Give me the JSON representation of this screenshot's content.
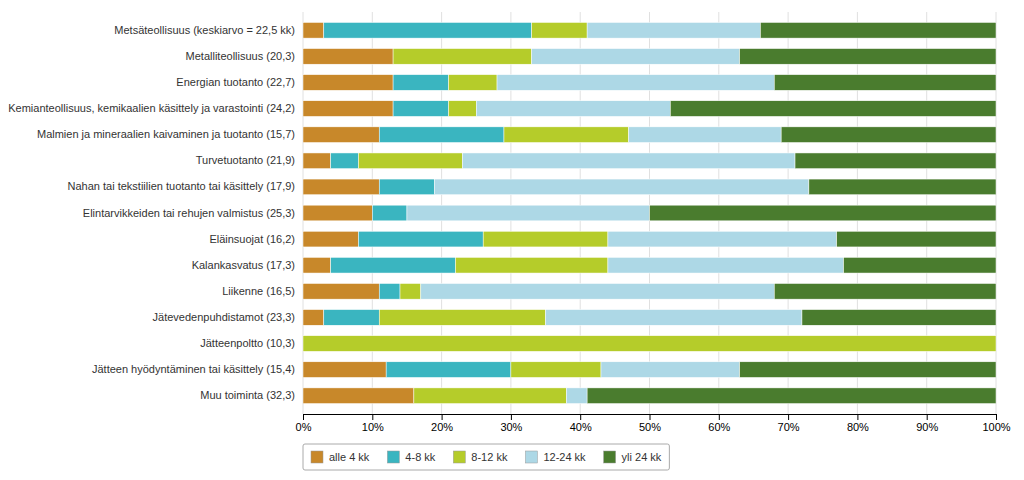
{
  "chart_data": {
    "type": "bar",
    "orientation": "horizontal",
    "stacked": true,
    "categories": [
      "Metsäteollisuus (keskiarvo = 22,5 kk)",
      "Metalliteollisuus (20,3)",
      "Energian tuotanto (22,7)",
      "Kemianteollisuus, kemikaalien käsittely ja varastointi (24,2)",
      "Malmien ja mineraalien kaivaminen ja tuotanto (15,7)",
      "Turvetuotanto (21,9)",
      "Nahan tai tekstiilien tuotanto tai käsittely (17,9)",
      "Elintarvikkeiden tai rehujen valmistus (25,3)",
      "Eläinsuojat (16,2)",
      "Kalankasvatus (17,3)",
      "Liikenne (16,5)",
      "Jätevedenpuhdistamot (23,3)",
      "Jätteenpoltto (10,3)",
      "Jätteen hyödyntäminen tai käsittely (15,4)",
      "Muu toiminta (32,3)"
    ],
    "series": [
      {
        "name": "alle 4 kk",
        "color": "#c8882a",
        "values": [
          3,
          13,
          13,
          13,
          11,
          4,
          11,
          10,
          8,
          4,
          11,
          3,
          0,
          12,
          16
        ]
      },
      {
        "name": "4-8 kk",
        "color": "#3ab5c0",
        "values": [
          30,
          0,
          8,
          8,
          18,
          4,
          8,
          5,
          18,
          18,
          3,
          8,
          0,
          18,
          0
        ]
      },
      {
        "name": "8-12 kk",
        "color": "#b5cc2a",
        "values": [
          8,
          20,
          7,
          4,
          18,
          15,
          0,
          0,
          18,
          22,
          3,
          24,
          100,
          13,
          22
        ]
      },
      {
        "name": "12-24 kk",
        "color": "#add8e6",
        "values": [
          25,
          30,
          40,
          28,
          22,
          48,
          54,
          35,
          33,
          34,
          51,
          37,
          0,
          20,
          3
        ]
      },
      {
        "name": "yli 24 kk",
        "color": "#4a7c2e",
        "values": [
          34,
          37,
          32,
          47,
          31,
          29,
          27,
          50,
          23,
          22,
          32,
          28,
          0,
          37,
          59
        ]
      }
    ],
    "xlim": [
      0,
      100
    ],
    "xticks": [
      {
        "value": 0,
        "label": "0%"
      },
      {
        "value": 10,
        "label": "10%"
      },
      {
        "value": 20,
        "label": "20%"
      },
      {
        "value": 30,
        "label": "30%"
      },
      {
        "value": 40,
        "label": "40%"
      },
      {
        "value": 50,
        "label": "50%"
      },
      {
        "value": 60,
        "label": "60%"
      },
      {
        "value": 70,
        "label": "70%"
      },
      {
        "value": 80,
        "label": "80%"
      },
      {
        "value": 90,
        "label": "90%"
      },
      {
        "value": 100,
        "label": "100%"
      }
    ],
    "grid": true,
    "legend": "lower left"
  }
}
